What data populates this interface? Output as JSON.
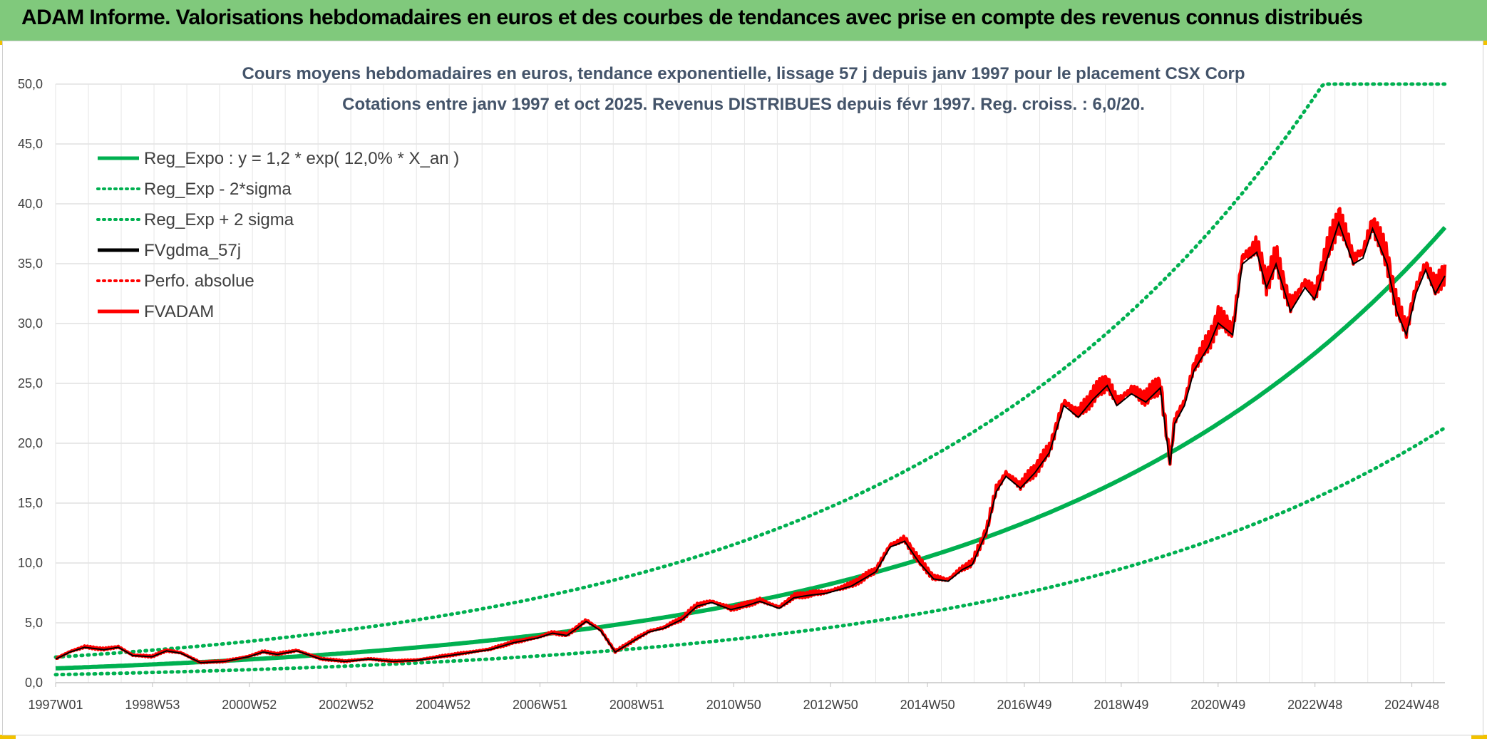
{
  "banner": {
    "title": "ADAM Informe. Valorisations hebdomadaires en euros et des courbes de tendances avec prise en compte des revenus connus distribués"
  },
  "colors": {
    "banner_bg": "#80c97c",
    "regression": "#00b050",
    "fv": "#000000",
    "adam": "#ff0000",
    "grid": "#d9d9d9"
  },
  "chart_data": {
    "type": "line",
    "title": "Cours moyens hebdomadaires en euros, tendance exponentielle, lissage 57 j depuis janv 1997 pour le placement CSX Corp",
    "subtitle": "Cotations entre janv 1997 et oct 2025. Revenus DISTRIBUES depuis févr 1997. Reg. croiss. : 6,0/20.",
    "x_range": [
      "1997W01",
      "2025W42"
    ],
    "ylim": [
      0,
      50
    ],
    "y_ticks": [
      "0,0",
      "5,0",
      "10,0",
      "15,0",
      "20,0",
      "25,0",
      "30,0",
      "35,0",
      "40,0",
      "45,0",
      "50,0"
    ],
    "x_tick_labels": [
      "1997W01",
      "1998W53",
      "2000W52",
      "2002W52",
      "2004W52",
      "2006W51",
      "2008W51",
      "2010W50",
      "2012W50",
      "2014W50",
      "2016W49",
      "2018W49",
      "2020W49",
      "2022W48",
      "2024W48"
    ],
    "grid": true,
    "legend_position": "top-left",
    "legend": [
      {
        "label": "Reg_Expo : y = 1,2 * exp( 12,0% *  X_an )",
        "color": "#00b050",
        "style": "solid"
      },
      {
        "label": "Reg_Exp - 2*sigma",
        "color": "#00b050",
        "style": "dotted"
      },
      {
        "label": "Reg_Exp + 2 sigma",
        "color": "#00b050",
        "style": "dotted"
      },
      {
        "label": "FVgdma_57j",
        "color": "#000000",
        "style": "solid"
      },
      {
        "label": "Perfo. absolue",
        "color": "#ff0000",
        "style": "dotted"
      },
      {
        "label": "FVADAM",
        "color": "#ff0000",
        "style": "solid"
      }
    ],
    "regression": {
      "a": 1.2,
      "rate": 0.12,
      "minus_2sigma_factor": 0.56,
      "plus_2sigma_factor": 1.78
    },
    "x_years": [
      1997.0,
      1997.3,
      1997.6,
      1998.0,
      1998.3,
      1998.6,
      1999.0,
      1999.3,
      1999.6,
      2000.0,
      2000.5,
      2001.0,
      2001.3,
      2001.6,
      2002.0,
      2002.5,
      2003.0,
      2003.5,
      2004.0,
      2004.5,
      2005.0,
      2005.5,
      2006.0,
      2006.5,
      2007.0,
      2007.3,
      2007.6,
      2008.0,
      2008.3,
      2008.6,
      2009.0,
      2009.3,
      2009.6,
      2010.0,
      2010.3,
      2010.6,
      2011.0,
      2011.3,
      2011.6,
      2012.0,
      2012.3,
      2012.6,
      2013.0,
      2013.5,
      2014.0,
      2014.3,
      2014.6,
      2014.9,
      2015.2,
      2015.5,
      2015.8,
      2016.0,
      2016.3,
      2016.5,
      2016.7,
      2017.0,
      2017.3,
      2017.6,
      2017.9,
      2018.2,
      2018.5,
      2018.8,
      2019.0,
      2019.3,
      2019.6,
      2019.9,
      2020.1,
      2020.2,
      2020.4,
      2020.6,
      2020.9,
      2021.1,
      2021.4,
      2021.6,
      2021.9,
      2022.1,
      2022.3,
      2022.6,
      2022.9,
      2023.1,
      2023.4,
      2023.6,
      2023.9,
      2024.1,
      2024.3,
      2024.6,
      2024.8,
      2025.0,
      2025.2,
      2025.4,
      2025.6,
      2025.8
    ],
    "fvadam": [
      2.0,
      2.6,
      3.0,
      2.8,
      3.0,
      2.3,
      2.2,
      2.7,
      2.5,
      1.7,
      1.8,
      2.2,
      2.6,
      2.4,
      2.7,
      2.0,
      1.8,
      2.0,
      1.8,
      1.9,
      2.2,
      2.5,
      2.8,
      3.4,
      3.8,
      4.2,
      4.0,
      5.2,
      4.4,
      2.6,
      3.6,
      4.3,
      4.6,
      5.4,
      6.5,
      6.8,
      6.2,
      6.5,
      6.9,
      6.3,
      7.2,
      7.4,
      7.6,
      8.2,
      9.4,
      11.5,
      12.0,
      10.2,
      8.8,
      8.6,
      9.6,
      10.0,
      12.8,
      16.2,
      17.5,
      16.5,
      17.8,
      19.5,
      23.5,
      22.5,
      24.0,
      25.2,
      23.5,
      24.5,
      23.8,
      25.0,
      18.5,
      22.0,
      23.5,
      26.5,
      28.5,
      30.5,
      29.5,
      35.5,
      36.5,
      33.5,
      35.5,
      31.5,
      33.5,
      32.5,
      36.5,
      39.0,
      35.5,
      36.0,
      38.5,
      35.5,
      31.5,
      29.5,
      33.0,
      35.0,
      33.0,
      34.5
    ]
  }
}
